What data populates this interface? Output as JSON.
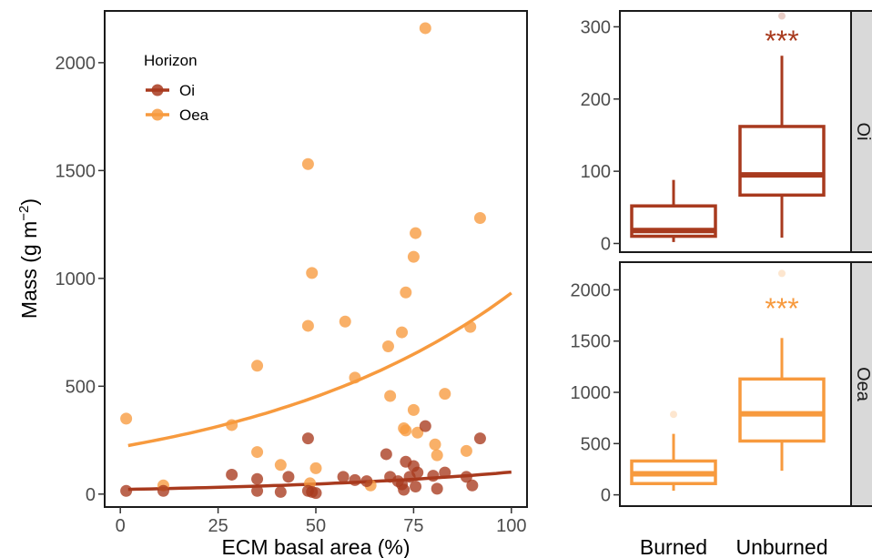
{
  "chart_data": [
    {
      "type": "scatter",
      "xlabel": "ECM basal area (%)",
      "ylabel": "Mass (g m",
      "ylabel_sup": "−2",
      "ylabel_close": ")",
      "xlim": [
        -4,
        104
      ],
      "ylim": [
        -60,
        2240
      ],
      "xticks": [
        0,
        25,
        50,
        75,
        100
      ],
      "yticks": [
        0,
        500,
        1000,
        1500,
        2000
      ],
      "grid": false,
      "legend": {
        "title": "Horizon",
        "position": "top-left"
      },
      "series": [
        {
          "name": "Oi",
          "color": "#a83a1e",
          "points": [
            [
              1.5,
              15
            ],
            [
              11,
              15
            ],
            [
              28.5,
              90
            ],
            [
              35,
              70
            ],
            [
              35,
              15
            ],
            [
              41,
              10
            ],
            [
              43,
              80
            ],
            [
              48,
              258
            ],
            [
              48,
              15
            ],
            [
              49,
              10
            ],
            [
              50,
              5
            ],
            [
              57,
              80
            ],
            [
              60,
              65
            ],
            [
              63,
              60
            ],
            [
              68,
              185
            ],
            [
              69,
              80
            ],
            [
              71,
              60
            ],
            [
              72,
              45
            ],
            [
              72.5,
              20
            ],
            [
              73,
              150
            ],
            [
              74,
              80
            ],
            [
              75,
              130
            ],
            [
              75.5,
              35
            ],
            [
              76,
              100
            ],
            [
              78,
              315
            ],
            [
              80,
              85
            ],
            [
              81,
              25
            ],
            [
              83,
              100
            ],
            [
              88.5,
              80
            ],
            [
              90,
              40
            ],
            [
              92,
              258
            ]
          ],
          "trend": {
            "x": [
              2,
              100
            ],
            "y": [
              22,
              102
            ]
          }
        },
        {
          "name": "Oea",
          "color": "#f79a3e",
          "points": [
            [
              1.5,
              350
            ],
            [
              11,
              40
            ],
            [
              28.5,
              320
            ],
            [
              35,
              595
            ],
            [
              35,
              195
            ],
            [
              41,
              135
            ],
            [
              48,
              1530
            ],
            [
              48,
              780
            ],
            [
              48.5,
              50
            ],
            [
              49,
              1025
            ],
            [
              50,
              120
            ],
            [
              57.5,
              800
            ],
            [
              60,
              540
            ],
            [
              64,
              40
            ],
            [
              68.5,
              685
            ],
            [
              69,
              455
            ],
            [
              72,
              750
            ],
            [
              72.5,
              305
            ],
            [
              73,
              935
            ],
            [
              73,
              295
            ],
            [
              75,
              1100
            ],
            [
              75.5,
              1210
            ],
            [
              75,
              390
            ],
            [
              76,
              285
            ],
            [
              78,
              2160
            ],
            [
              80.5,
              230
            ],
            [
              81,
              180
            ],
            [
              83,
              465
            ],
            [
              88.5,
              200
            ],
            [
              89.5,
              775
            ],
            [
              92,
              1280
            ]
          ],
          "trend": {
            "x": [
              2,
              100
            ],
            "y": [
              225,
              932
            ]
          }
        }
      ]
    },
    {
      "type": "box",
      "categories": [
        "Burned",
        "Unburned"
      ],
      "panels": [
        {
          "label": "Oi",
          "color": "#a83a1e",
          "ylim": [
            -12,
            322
          ],
          "yticks": [
            0,
            100,
            200,
            300
          ],
          "boxes": [
            {
              "q1": 10,
              "median": 18,
              "q3": 52,
              "whisker_low": 2,
              "whisker_high": 88,
              "outliers": []
            },
            {
              "q1": 67,
              "median": 95,
              "q3": 162,
              "whisker_low": 8,
              "whisker_high": 260,
              "outliers": [
                315
              ]
            }
          ],
          "annotation": "***"
        },
        {
          "label": "Oea",
          "color": "#f79a3e",
          "ylim": [
            -110,
            2270
          ],
          "yticks": [
            0,
            500,
            1000,
            1500,
            2000
          ],
          "boxes": [
            {
              "q1": 110,
              "median": 205,
              "q3": 330,
              "whisker_low": 40,
              "whisker_high": 595,
              "outliers": [
                785
              ]
            },
            {
              "q1": 525,
              "median": 790,
              "q3": 1130,
              "whisker_low": 235,
              "whisker_high": 1530,
              "outliers": [
                2160
              ]
            }
          ],
          "annotation": "***"
        }
      ],
      "xlabel_left": "Burned",
      "xlabel_right": "Unburned"
    }
  ]
}
